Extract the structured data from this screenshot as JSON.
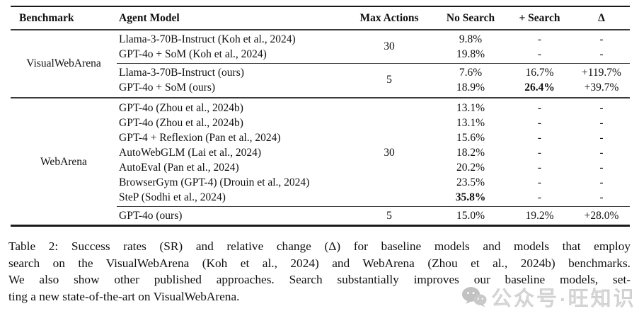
{
  "table": {
    "headers": [
      "Benchmark",
      "Agent Model",
      "Max Actions",
      "No Search",
      "+ Search",
      "Δ"
    ],
    "sections": [
      {
        "benchmark": "VisualWebArena",
        "groups": [
          {
            "max_actions": "30",
            "rows": [
              {
                "model": "Llama-3-70B-Instruct (Koh et al., 2024)",
                "no_search": "9.8%",
                "search": "-",
                "delta": "-"
              },
              {
                "model": "GPT-4o + SoM (Koh et al., 2024)",
                "no_search": "19.8%",
                "search": "-",
                "delta": "-"
              }
            ]
          },
          {
            "max_actions": "5",
            "rows": [
              {
                "model": "Llama-3-70B-Instruct (ours)",
                "no_search": "7.6%",
                "search": "16.7%",
                "delta": "+119.7%"
              },
              {
                "model": "GPT-4o + SoM (ours)",
                "no_search": "18.9%",
                "search": "26.4%",
                "bold": "search",
                "delta": "+39.7%"
              }
            ]
          }
        ]
      },
      {
        "benchmark": "WebArena",
        "groups": [
          {
            "max_actions": "30",
            "rows": [
              {
                "model": "GPT-4o (Zhou et al., 2024b)",
                "no_search": "13.1%",
                "search": "-",
                "delta": "-"
              },
              {
                "model": "GPT-4o (Zhou et al., 2024b)",
                "no_search": "13.1%",
                "search": "-",
                "delta": "-"
              },
              {
                "model": "GPT-4 + Reflexion (Pan et al., 2024)",
                "no_search": "15.6%",
                "search": "-",
                "delta": "-"
              },
              {
                "model": "AutoWebGLM (Lai et al., 2024)",
                "no_search": "18.2%",
                "search": "-",
                "delta": "-"
              },
              {
                "model": "AutoEval (Pan et al., 2024)",
                "no_search": "20.2%",
                "search": "-",
                "delta": "-"
              },
              {
                "model": "BrowserGym (GPT-4) (Drouin et al., 2024)",
                "no_search": "23.5%",
                "search": "-",
                "delta": "-"
              },
              {
                "model": "SteP (Sodhi et al., 2024)",
                "no_search": "35.8%",
                "bold": "no_search",
                "search": "-",
                "delta": "-"
              }
            ]
          },
          {
            "max_actions": "5",
            "rows": [
              {
                "model": "GPT-4o (ours)",
                "no_search": "15.0%",
                "search": "19.2%",
                "delta": "+28.0%"
              }
            ]
          }
        ]
      }
    ]
  },
  "caption": {
    "label": "Table 2:",
    "lines": [
      "Table 2: Success rates (SR) and relative change (Δ) for baseline models and models that employ",
      "search on the VisualWebArena (Koh et al., 2024) and WebArena (Zhou et al., 2024b) benchmarks.",
      "We also show other published approaches. Search substantially improves our baseline models, set-",
      "ting a new state-of-the-art on VisualWebArena."
    ]
  },
  "watermark": {
    "icon": "wechat-icon",
    "text": "公众号·旺知识"
  }
}
